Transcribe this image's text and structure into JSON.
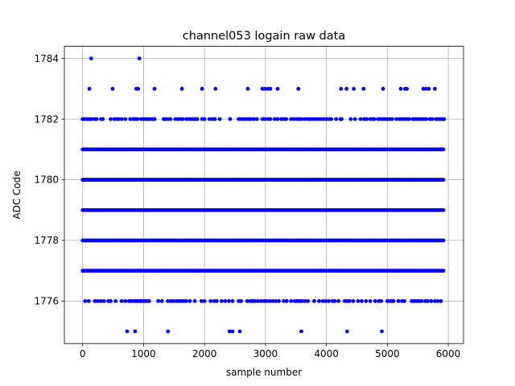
{
  "chart_data": {
    "type": "scatter",
    "title": "channel053 logain raw data",
    "xlabel": "sample number",
    "ylabel": "ADC Code",
    "xlim": [
      -300,
      6250
    ],
    "ylim": [
      1774.6,
      1784.4
    ],
    "x_ticks": [
      0,
      1000,
      2000,
      3000,
      4000,
      5000,
      6000
    ],
    "x_tick_labels": [
      "0",
      "1000",
      "2000",
      "3000",
      "4000",
      "5000",
      "6000"
    ],
    "y_ticks": [
      1776,
      1778,
      1780,
      1782,
      1784
    ],
    "y_tick_labels": [
      "1776",
      "1778",
      "1780",
      "1782",
      "1784"
    ],
    "grid": true,
    "marker_color": "#0000ff",
    "n_samples": 5940,
    "series": [
      {
        "level_counts_note": "dense levels drawn as continuous bands",
        "dense_levels": [
          1777,
          1778,
          1779,
          1780,
          1781
        ],
        "level_1782_x": [
          0,
          30,
          60,
          90,
          120,
          150,
          200,
          230,
          300,
          330,
          460,
          520,
          560,
          590,
          640,
          700,
          780,
          830,
          860,
          900,
          960,
          1000,
          1040,
          1070,
          1100,
          1140,
          1160,
          1180,
          1330,
          1360,
          1400,
          1440,
          1520,
          1560,
          1600,
          1640,
          1700,
          1740,
          1780,
          1820,
          1850,
          1880,
          1960,
          2000,
          2080,
          2130,
          2170,
          2250,
          2420,
          2560,
          2600,
          2640,
          2680,
          2720,
          2760,
          2810,
          2860,
          2950,
          2990,
          3040,
          3080,
          3150,
          3200,
          3260,
          3300,
          3340,
          3420,
          3470,
          3520,
          3560,
          3600,
          3650,
          3700,
          3730,
          3760,
          3800,
          3840,
          3880,
          3920,
          3960,
          4000,
          4040,
          4080,
          4160,
          4230,
          4250,
          4400,
          4470,
          4560,
          4620,
          4660,
          4720,
          4760,
          4790,
          4850,
          4890,
          4930,
          4960,
          5000,
          5040,
          5080,
          5150,
          5200,
          5240,
          5280,
          5320,
          5360,
          5420,
          5450,
          5480,
          5520,
          5560,
          5600,
          5640,
          5700,
          5740,
          5800,
          5830,
          5870,
          5900,
          5930
        ],
        "level_1783_x": [
          110,
          490,
          880,
          910,
          1180,
          1630,
          1960,
          2180,
          2710,
          2950,
          2990,
          3040,
          3080,
          3200,
          3540,
          4240,
          4330,
          4450,
          4610,
          4930,
          5220,
          5290,
          5320,
          5590,
          5630,
          5680,
          5780
        ],
        "level_1784_x": [
          140,
          930
        ],
        "level_1776_x": [
          40,
          100,
          200,
          250,
          300,
          350,
          420,
          460,
          540,
          640,
          700,
          760,
          800,
          850,
          880,
          900,
          940,
          970,
          1010,
          1050,
          1090,
          1240,
          1300,
          1400,
          1450,
          1490,
          1540,
          1580,
          1620,
          1660,
          1700,
          1760,
          1840,
          1950,
          2000,
          2100,
          2160,
          2200,
          2280,
          2340,
          2400,
          2460,
          2560,
          2600,
          2700,
          2750,
          2790,
          2830,
          2880,
          2930,
          2980,
          3020,
          3070,
          3120,
          3170,
          3220,
          3300,
          3350,
          3420,
          3480,
          3520,
          3560,
          3600,
          3650,
          3700,
          3800,
          3880,
          3940,
          3990,
          4040,
          4100,
          4140,
          4200,
          4300,
          4340,
          4380,
          4440,
          4520,
          4580,
          4650,
          4720,
          4800,
          4860,
          4900,
          5000,
          5040,
          5080,
          5100,
          5180,
          5240,
          5280,
          5400,
          5440,
          5480,
          5520,
          5560,
          5620,
          5660,
          5720,
          5780,
          5830,
          5880
        ],
        "level_1775_x": [
          730,
          860,
          1400,
          2410,
          2460,
          2580,
          3590,
          4340,
          4910
        ]
      }
    ]
  }
}
